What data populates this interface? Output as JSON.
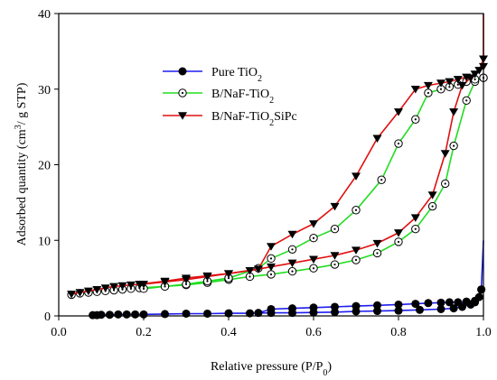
{
  "chart_data": {
    "type": "line",
    "xlabel": "Relative pressure (P/P",
    "xlabel_sub": "0",
    "xlabel_end": ")",
    "ylabel": "Adsorbed quantity (cm",
    "ylabel_sup": "3",
    "ylabel_end": "/ g STP)",
    "xlim": [
      0.0,
      1.0
    ],
    "ylim": [
      0,
      40
    ],
    "xticks": [
      "0.0",
      "0.2",
      "0.4",
      "0.6",
      "0.8",
      "1.0"
    ],
    "yticks": [
      "0",
      "10",
      "20",
      "30",
      "40"
    ],
    "grid": false,
    "legend_position": "upper-left",
    "series": [
      {
        "name": "Pure TiO",
        "name_sub": "2",
        "color": "#1d1df0",
        "marker": "filled-circle",
        "adsorption": {
          "x": [
            0.08,
            0.09,
            0.1,
            0.12,
            0.14,
            0.16,
            0.18,
            0.2,
            0.25,
            0.3,
            0.35,
            0.4,
            0.45,
            0.5,
            0.55,
            0.6,
            0.65,
            0.7,
            0.75,
            0.8,
            0.85,
            0.9,
            0.93,
            0.95,
            0.97,
            0.98,
            0.99,
            0.995,
            1.0
          ],
          "y": [
            0.1,
            0.1,
            0.15,
            0.15,
            0.2,
            0.2,
            0.2,
            0.2,
            0.25,
            0.3,
            0.3,
            0.35,
            0.35,
            0.4,
            0.4,
            0.45,
            0.5,
            0.6,
            0.65,
            0.7,
            0.8,
            0.9,
            1.0,
            1.2,
            1.5,
            1.8,
            2.5,
            3.5,
            10.0
          ]
        },
        "desorption": {
          "x": [
            0.995,
            0.98,
            0.96,
            0.94,
            0.92,
            0.9,
            0.87,
            0.84,
            0.8,
            0.75,
            0.7,
            0.65,
            0.6,
            0.55,
            0.5,
            0.47
          ],
          "y": [
            3.5,
            2.0,
            1.9,
            1.8,
            1.8,
            1.75,
            1.7,
            1.6,
            1.5,
            1.4,
            1.3,
            1.2,
            1.1,
            1.0,
            0.9,
            0.4
          ]
        }
      },
      {
        "name": "B/NaF-TiO",
        "name_sub": "2",
        "color": "#22dd22",
        "marker": "dotted-circle",
        "adsorption": {
          "x": [
            0.03,
            0.05,
            0.07,
            0.09,
            0.11,
            0.13,
            0.15,
            0.17,
            0.19,
            0.25,
            0.3,
            0.35,
            0.4,
            0.45,
            0.5,
            0.55,
            0.6,
            0.65,
            0.7,
            0.75,
            0.8,
            0.84,
            0.88,
            0.91,
            0.93,
            0.96,
            0.98,
            1.0
          ],
          "y": [
            2.8,
            3.0,
            3.1,
            3.2,
            3.3,
            3.4,
            3.5,
            3.6,
            3.7,
            3.9,
            4.1,
            4.4,
            4.8,
            5.2,
            5.5,
            5.9,
            6.3,
            6.8,
            7.4,
            8.3,
            9.8,
            11.5,
            14.5,
            17.5,
            22.5,
            28.5,
            31.0,
            31.5
          ]
        },
        "desorption": {
          "x": [
            1.0,
            0.98,
            0.96,
            0.94,
            0.92,
            0.9,
            0.87,
            0.84,
            0.8,
            0.76,
            0.7,
            0.65,
            0.6,
            0.55,
            0.5,
            0.47,
            0.4,
            0.35,
            0.3,
            0.25,
            0.2
          ],
          "y": [
            31.5,
            31.3,
            31.0,
            30.6,
            30.3,
            30.0,
            29.5,
            26.0,
            22.8,
            18.0,
            14.0,
            11.5,
            10.3,
            8.8,
            7.6,
            6.3,
            5.0,
            4.6,
            4.2,
            3.9,
            3.6
          ]
        }
      },
      {
        "name": "B/NaF-TiO",
        "name_sub": "2",
        "name_end": "SiPc",
        "color": "#e01010",
        "marker": "filled-triangle-down",
        "adsorption": {
          "x": [
            0.03,
            0.05,
            0.07,
            0.09,
            0.11,
            0.13,
            0.15,
            0.17,
            0.19,
            0.25,
            0.3,
            0.35,
            0.4,
            0.45,
            0.5,
            0.55,
            0.6,
            0.65,
            0.7,
            0.75,
            0.8,
            0.84,
            0.88,
            0.91,
            0.93,
            0.95,
            0.97,
            0.99,
            1.0,
            1.0
          ],
          "y": [
            2.9,
            3.1,
            3.3,
            3.5,
            3.7,
            3.9,
            4.0,
            4.1,
            4.2,
            4.6,
            5.0,
            5.3,
            5.6,
            6.0,
            6.5,
            7.0,
            7.5,
            8.0,
            8.7,
            9.6,
            11.0,
            13.0,
            16.0,
            21.5,
            27.0,
            30.5,
            31.5,
            32.5,
            34.0,
            40.0
          ]
        },
        "desorption": {
          "x": [
            1.0,
            0.98,
            0.96,
            0.94,
            0.92,
            0.9,
            0.87,
            0.84,
            0.8,
            0.75,
            0.7,
            0.65,
            0.6,
            0.55,
            0.5,
            0.47,
            0.4,
            0.35,
            0.3,
            0.25,
            0.2
          ],
          "y": [
            33.0,
            32.0,
            31.6,
            31.3,
            31.0,
            30.8,
            30.5,
            30.0,
            27.0,
            23.5,
            18.5,
            14.5,
            12.2,
            10.8,
            9.2,
            6.2,
            5.6,
            5.2,
            4.8,
            4.5,
            4.2
          ]
        }
      }
    ]
  }
}
